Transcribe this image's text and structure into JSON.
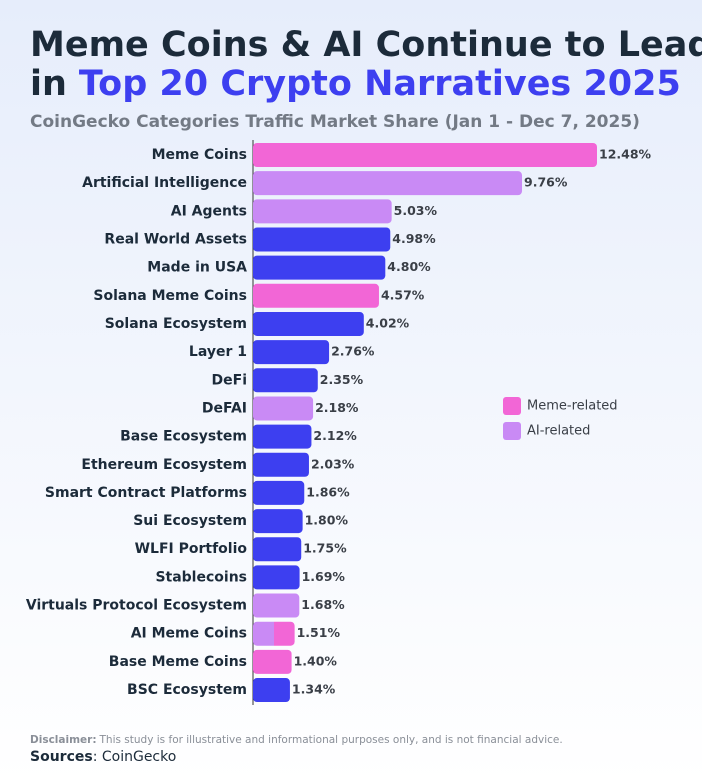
{
  "chart_data": {
    "type": "hbar",
    "title_line1": "Meme Coins & AI Continue to Lead",
    "title_line2_prefix": "in",
    "title_highlight": "Top 20 Crypto Narratives 2025",
    "subtitle": "CoinGecko Categories Traffic Market Share (Jan 1 - Dec 7, 2025)",
    "categories": [
      "Meme Coins",
      "Artificial Intelligence",
      "AI Agents",
      "Real World Assets",
      "Made in USA",
      "Solana Meme Coins",
      "Solana Ecosystem",
      "Layer 1",
      "DeFi",
      "DeFAI",
      "Base Ecosystem",
      "Ethereum Ecosystem",
      "Smart Contract Platforms",
      "Sui Ecosystem",
      "WLFI Portfolio",
      "Stablecoins",
      "Virtuals Protocol Ecosystem",
      "AI Meme Coins",
      "Base Meme Coins",
      "BSC Ecosystem"
    ],
    "values": [
      12.48,
      9.76,
      5.03,
      4.98,
      4.8,
      4.57,
      4.02,
      2.76,
      2.35,
      2.18,
      2.12,
      2.03,
      1.86,
      1.8,
      1.75,
      1.69,
      1.68,
      1.51,
      1.4,
      1.34
    ],
    "value_labels": [
      "12.48%",
      "9.76%",
      "5.03%",
      "4.98%",
      "4.80%",
      "4.57%",
      "4.02%",
      "2.76%",
      "2.35%",
      "2.18%",
      "2.12%",
      "2.03%",
      "1.86%",
      "1.80%",
      "1.75%",
      "1.69%",
      "1.68%",
      "1.51%",
      "1.40%",
      "1.34%"
    ],
    "colors": [
      "#f266d6",
      "#c98af5",
      "#c98af5",
      "#3d3ff0",
      "#3d3ff0",
      "#f266d6",
      "#3d3ff0",
      "#3d3ff0",
      "#3d3ff0",
      "#c98af5",
      "#3d3ff0",
      "#3d3ff0",
      "#3d3ff0",
      "#3d3ff0",
      "#3d3ff0",
      "#3d3ff0",
      "#c98af5",
      [
        "#c98af5",
        "#f266d6"
      ],
      "#f266d6",
      "#3d3ff0"
    ],
    "legend": [
      {
        "name": "Meme-related",
        "color": "#f266d6"
      },
      {
        "name": "AI-related",
        "color": "#c98af5"
      }
    ]
  },
  "footer": {
    "disclaimer_label": "Disclaimer:",
    "disclaimer_text": "This study is for illustrative and informational purposes only, and is not financial advice.",
    "sources_label": "Sources",
    "sources_text": ": CoinGecko"
  }
}
